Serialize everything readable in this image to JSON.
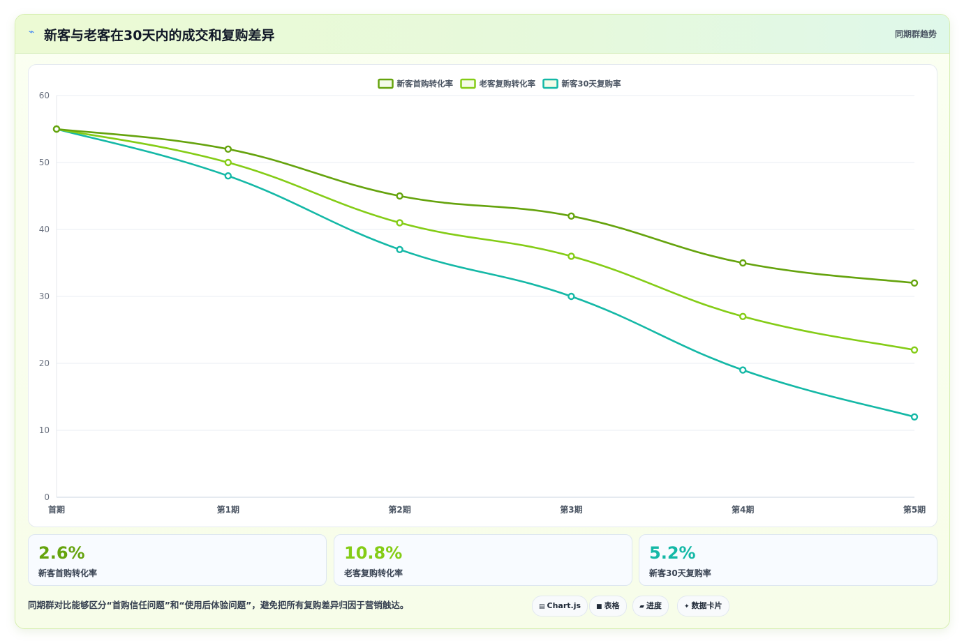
{
  "header": {
    "icon": "trend-icon",
    "title": "新客与老客在30天内的成交和复购差异",
    "tag": "同期群趋势"
  },
  "chart_data": {
    "type": "line",
    "categories": [
      "首期",
      "第1期",
      "第2期",
      "第3期",
      "第4期",
      "第5期"
    ],
    "ylim": [
      0,
      60
    ],
    "yticks": [
      0,
      10,
      20,
      30,
      40,
      50,
      60
    ],
    "grid": true,
    "legend_position": "top-center",
    "series": [
      {
        "name": "新客首购转化率",
        "color": "#65a30d",
        "values": [
          55,
          52,
          45,
          42,
          35,
          32
        ]
      },
      {
        "name": "老客复购转化率",
        "color": "#84cc16",
        "values": [
          55,
          50,
          41,
          36,
          27,
          22
        ]
      },
      {
        "name": "新客30天复购率",
        "color": "#14b8a6",
        "values": [
          55,
          48,
          37,
          30,
          19,
          12
        ]
      }
    ]
  },
  "metrics": [
    {
      "value": "2.6%",
      "label": "新客首购转化率",
      "color": "#65a30d"
    },
    {
      "value": "10.8%",
      "label": "老客复购转化率",
      "color": "#84cc16"
    },
    {
      "value": "5.2%",
      "label": "新客30天复购率",
      "color": "#14b8a6"
    }
  ],
  "note": "同期群对比能够区分“首购信任问题”和“使用后体验问题”，避免把所有复购差异归因于营销触达。",
  "chips": [
    {
      "icon": "chart-icon",
      "glyph": "▤",
      "label": "Chart.js"
    },
    {
      "icon": "table-icon",
      "glyph": "■",
      "label": "表格"
    },
    {
      "icon": "progress-icon",
      "glyph": "▰",
      "label": "进度"
    },
    {
      "icon": "data-card-icon",
      "glyph": "✦",
      "label": "数据卡片"
    }
  ]
}
